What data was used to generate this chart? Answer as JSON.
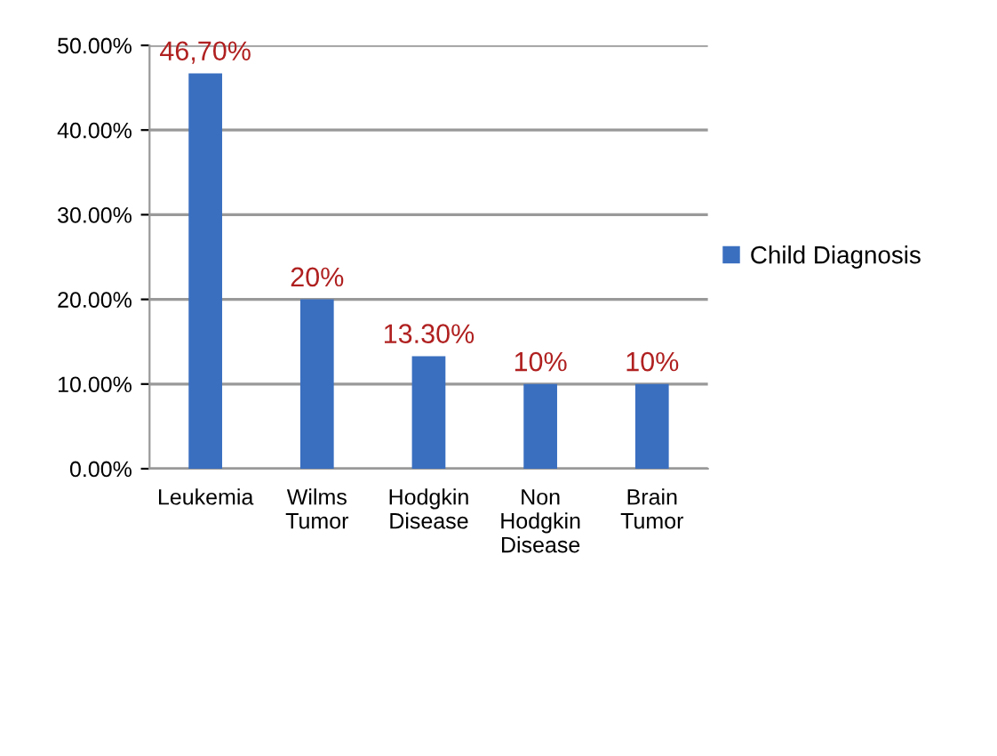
{
  "chart_data": {
    "type": "bar",
    "categories": [
      "Leukemia",
      "Wilms\nTumor",
      "Hodgkin\nDisease",
      "Non\nHodgkin\nDisease",
      "Brain\nTumor"
    ],
    "series": [
      {
        "name": "Child Diagnosis",
        "color": "#3a6fc0",
        "values": [
          46.7,
          20,
          13.3,
          10,
          10
        ],
        "value_labels": [
          "46,70%",
          "20%",
          "13.30%",
          "10%",
          "10%"
        ]
      }
    ],
    "ylim": [
      0,
      50
    ],
    "yticks": [
      {
        "value": 0,
        "label": "0.00%"
      },
      {
        "value": 10,
        "label": "10.00%"
      },
      {
        "value": 20,
        "label": "20.00%"
      },
      {
        "value": 30,
        "label": "30.00%"
      },
      {
        "value": 40,
        "label": "40.00%"
      },
      {
        "value": 50,
        "label": "50.00%"
      }
    ],
    "grid": "y",
    "legend": "right"
  }
}
